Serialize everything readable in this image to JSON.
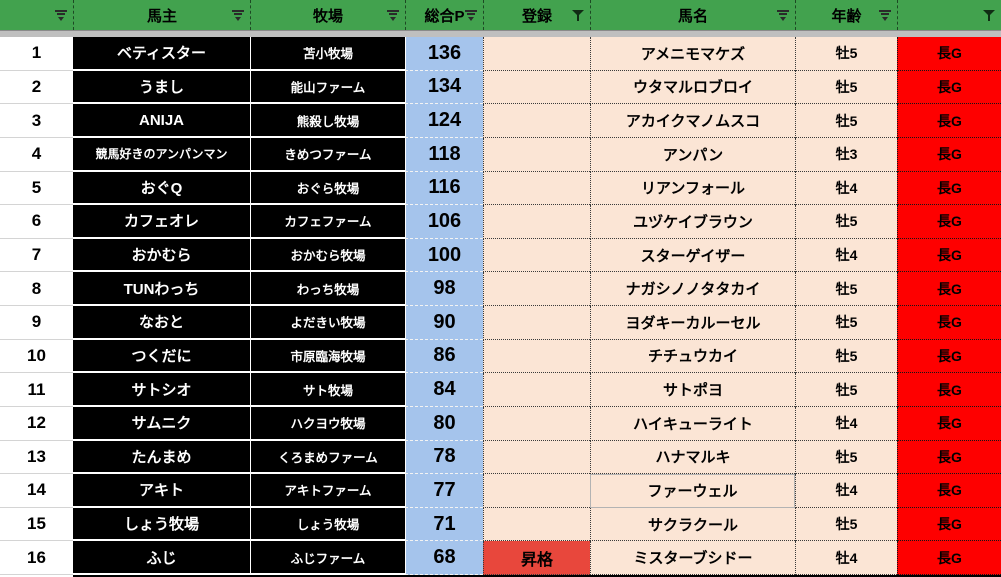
{
  "header": {
    "columns": [
      {
        "label": "",
        "icon": "dropdown-icon"
      },
      {
        "label": "馬主",
        "icon": "dropdown-icon"
      },
      {
        "label": "牧場",
        "icon": "dropdown-icon"
      },
      {
        "label": "総合P",
        "icon": "dropdown-icon"
      },
      {
        "label": "登録",
        "icon": "funnel-icon"
      },
      {
        "label": "馬名",
        "icon": "dropdown-icon"
      },
      {
        "label": "年齢",
        "icon": "dropdown-icon"
      },
      {
        "label": "",
        "icon": "funnel-icon"
      }
    ]
  },
  "colors": {
    "header_green": "#42a24e",
    "points_blue": "#a5c4ec",
    "data_peach": "#fbe5d5",
    "grade_red": "#fe0000",
    "promoted_red": "#e8473c",
    "pane_divider_gray": "#bfbfbf",
    "owner_cell_black": "#000000",
    "selection_border_gray": "#b3b3b3"
  },
  "table": {
    "rows": [
      {
        "rank": "1",
        "owner": "ベティスター",
        "farm": "苫小牧場",
        "points": "136",
        "registration": "",
        "horse": "アメニモマケズ",
        "age": "牡5",
        "grade": "長G",
        "promoted": false,
        "selected": false
      },
      {
        "rank": "2",
        "owner": "うまし",
        "farm": "能山ファーム",
        "points": "134",
        "registration": "",
        "horse": "ウタマルロブロイ",
        "age": "牡5",
        "grade": "長G",
        "promoted": false,
        "selected": false
      },
      {
        "rank": "3",
        "owner": "ANIJA",
        "farm": "熊殺し牧場",
        "points": "124",
        "registration": "",
        "horse": "アカイクマノムスコ",
        "age": "牡5",
        "grade": "長G",
        "promoted": false,
        "selected": false
      },
      {
        "rank": "4",
        "owner": "競馬好きのアンパンマン",
        "farm": "きめつファーム",
        "points": "118",
        "registration": "",
        "horse": "アンパン",
        "age": "牡3",
        "grade": "長G",
        "promoted": false,
        "selected": false
      },
      {
        "rank": "5",
        "owner": "おぐQ",
        "farm": "おぐら牧場",
        "points": "116",
        "registration": "",
        "horse": "リアンフォール",
        "age": "牡4",
        "grade": "長G",
        "promoted": false,
        "selected": false
      },
      {
        "rank": "6",
        "owner": "カフェオレ",
        "farm": "カフェファーム",
        "points": "106",
        "registration": "",
        "horse": "ユヅケイブラウン",
        "age": "牡5",
        "grade": "長G",
        "promoted": false,
        "selected": false
      },
      {
        "rank": "7",
        "owner": "おかむら",
        "farm": "おかむら牧場",
        "points": "100",
        "registration": "",
        "horse": "スターゲイザー",
        "age": "牡4",
        "grade": "長G",
        "promoted": false,
        "selected": false
      },
      {
        "rank": "8",
        "owner": "TUNわっち",
        "farm": "わっち牧場",
        "points": "98",
        "registration": "",
        "horse": "ナガシノノタタカイ",
        "age": "牡5",
        "grade": "長G",
        "promoted": false,
        "selected": false
      },
      {
        "rank": "9",
        "owner": "なおと",
        "farm": "よだきい牧場",
        "points": "90",
        "registration": "",
        "horse": "ヨダキーカルーセル",
        "age": "牡5",
        "grade": "長G",
        "promoted": false,
        "selected": false
      },
      {
        "rank": "10",
        "owner": "つくだに",
        "farm": "市原臨海牧場",
        "points": "86",
        "registration": "",
        "horse": "チチュウカイ",
        "age": "牡5",
        "grade": "長G",
        "promoted": false,
        "selected": false
      },
      {
        "rank": "11",
        "owner": "サトシオ",
        "farm": "サト牧場",
        "points": "84",
        "registration": "",
        "horse": "サトポヨ",
        "age": "牡5",
        "grade": "長G",
        "promoted": false,
        "selected": false
      },
      {
        "rank": "12",
        "owner": "サムニク",
        "farm": "ハクヨウ牧場",
        "points": "80",
        "registration": "",
        "horse": "ハイキューライト",
        "age": "牡4",
        "grade": "長G",
        "promoted": false,
        "selected": false
      },
      {
        "rank": "13",
        "owner": "たんまめ",
        "farm": "くろまめファーム",
        "points": "78",
        "registration": "",
        "horse": "ハナマルキ",
        "age": "牡5",
        "grade": "長G",
        "promoted": false,
        "selected": false
      },
      {
        "rank": "14",
        "owner": "アキト",
        "farm": "アキトファーム",
        "points": "77",
        "registration": "",
        "horse": "ファーウェル",
        "age": "牡4",
        "grade": "長G",
        "promoted": false,
        "selected": true
      },
      {
        "rank": "15",
        "owner": "しょう牧場",
        "farm": "しょう牧場",
        "points": "71",
        "registration": "",
        "horse": "サクラクール",
        "age": "牡5",
        "grade": "長G",
        "promoted": false,
        "selected": false
      },
      {
        "rank": "16",
        "owner": "ふじ",
        "farm": "ふじファーム",
        "points": "68",
        "registration": "昇格",
        "horse": "ミスターブシドー",
        "age": "牡4",
        "grade": "長G",
        "promoted": true,
        "selected": false
      }
    ]
  }
}
